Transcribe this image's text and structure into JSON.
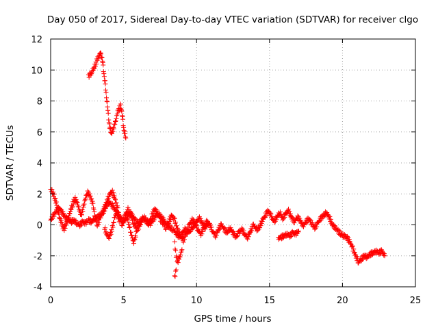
{
  "chart_data": {
    "type": "scatter",
    "title": "Day 050 of 2017, Sidereal Day-to-day VTEC variation (SDTVAR) for receiver clgo",
    "xlabel": "GPS time / hours",
    "ylabel": "SDTVAR / TECUs",
    "xlim": [
      0,
      25
    ],
    "ylim": [
      -4,
      12
    ],
    "xticks": [
      0,
      5,
      10,
      15,
      20,
      25
    ],
    "yticks": [
      -4,
      -2,
      0,
      2,
      4,
      6,
      8,
      10,
      12
    ],
    "grid": true,
    "marker": "+",
    "series": [
      {
        "name": "SDTVAR",
        "color": "#ff0000",
        "tracks": [
          [
            [
              0.0,
              2.3
            ],
            [
              0.15,
              2.1
            ],
            [
              0.3,
              1.7
            ],
            [
              0.45,
              1.2
            ],
            [
              0.6,
              0.5
            ],
            [
              0.75,
              0.1
            ],
            [
              0.9,
              -0.3
            ],
            [
              1.05,
              0.0
            ],
            [
              1.2,
              0.4
            ],
            [
              1.35,
              0.9
            ],
            [
              1.5,
              1.3
            ],
            [
              1.65,
              1.7
            ],
            [
              1.8,
              1.5
            ],
            [
              1.95,
              1.0
            ],
            [
              2.1,
              0.6
            ],
            [
              2.3,
              1.4
            ],
            [
              2.5,
              2.1
            ],
            [
              2.7,
              1.9
            ],
            [
              2.9,
              1.3
            ],
            [
              3.05,
              0.5
            ],
            [
              3.2,
              0.0
            ],
            [
              3.4,
              0.4
            ],
            [
              3.6,
              0.9
            ],
            [
              3.8,
              1.4
            ],
            [
              4.0,
              1.9
            ],
            [
              4.2,
              2.2
            ],
            [
              4.4,
              1.7
            ],
            [
              4.6,
              1.0
            ],
            [
              4.75,
              0.4
            ],
            [
              4.9,
              0.0
            ],
            [
              5.1,
              0.6
            ],
            [
              5.3,
              1.0
            ],
            [
              5.5,
              0.6
            ],
            [
              5.7,
              0.1
            ],
            [
              5.9,
              -0.3
            ],
            [
              6.1,
              -0.1
            ],
            [
              6.3,
              0.4
            ],
            [
              6.5,
              0.3
            ],
            [
              6.7,
              0.1
            ],
            [
              6.9,
              0.5
            ],
            [
              7.1,
              1.0
            ],
            [
              7.3,
              0.8
            ],
            [
              7.5,
              0.4
            ],
            [
              7.7,
              0.1
            ],
            [
              7.9,
              -0.2
            ],
            [
              8.1,
              0.2
            ],
            [
              8.3,
              0.6
            ],
            [
              8.5,
              0.3
            ],
            [
              8.7,
              -0.3
            ],
            [
              8.9,
              -0.7
            ],
            [
              9.1,
              -1.0
            ],
            [
              9.3,
              -0.5
            ],
            [
              9.5,
              0.0
            ],
            [
              9.7,
              0.3
            ],
            [
              9.9,
              0.1
            ],
            [
              10.1,
              -0.3
            ],
            [
              10.3,
              -0.6
            ],
            [
              10.5,
              -0.2
            ],
            [
              10.7,
              0.2
            ],
            [
              10.9,
              0.0
            ],
            [
              11.1,
              -0.4
            ],
            [
              11.3,
              -0.7
            ],
            [
              11.5,
              -0.3
            ],
            [
              11.7,
              0.0
            ],
            [
              11.9,
              -0.3
            ],
            [
              12.1,
              -0.5
            ],
            [
              12.3,
              -0.2
            ],
            [
              12.5,
              -0.5
            ],
            [
              12.7,
              -0.8
            ],
            [
              12.9,
              -0.5
            ],
            [
              13.1,
              -0.3
            ],
            [
              13.3,
              -0.6
            ],
            [
              13.5,
              -0.8
            ],
            [
              13.7,
              -0.4
            ],
            [
              13.9,
              0.0
            ],
            [
              14.1,
              -0.3
            ],
            [
              14.3,
              -0.2
            ],
            [
              14.5,
              0.3
            ],
            [
              14.7,
              0.6
            ],
            [
              14.9,
              0.9
            ],
            [
              15.1,
              0.6
            ],
            [
              15.3,
              0.2
            ],
            [
              15.5,
              0.5
            ],
            [
              15.7,
              0.8
            ],
            [
              15.9,
              0.4
            ],
            [
              16.1,
              0.7
            ],
            [
              16.3,
              0.9
            ],
            [
              16.5,
              0.5
            ],
            [
              16.7,
              0.2
            ],
            [
              16.9,
              0.5
            ],
            [
              17.1,
              0.3
            ],
            [
              17.3,
              -0.1
            ],
            [
              17.5,
              0.2
            ],
            [
              17.7,
              0.4
            ],
            [
              17.9,
              0.1
            ],
            [
              18.1,
              -0.2
            ],
            [
              18.3,
              0.1
            ],
            [
              18.5,
              0.4
            ],
            [
              18.7,
              0.6
            ],
            [
              18.9,
              0.8
            ],
            [
              19.1,
              0.5
            ],
            [
              19.3,
              0.0
            ],
            [
              19.5,
              -0.2
            ],
            [
              19.7,
              -0.4
            ],
            [
              19.9,
              -0.6
            ],
            [
              20.1,
              -0.7
            ],
            [
              20.3,
              -0.8
            ],
            [
              20.5,
              -1.1
            ],
            [
              20.7,
              -1.5
            ],
            [
              20.9,
              -2.0
            ],
            [
              21.1,
              -2.4
            ],
            [
              21.3,
              -2.2
            ],
            [
              21.5,
              -2.0
            ],
            [
              21.7,
              -2.1
            ],
            [
              21.9,
              -1.9
            ],
            [
              22.1,
              -1.8
            ],
            [
              22.3,
              -1.7
            ],
            [
              22.5,
              -1.8
            ],
            [
              22.7,
              -1.7
            ],
            [
              22.9,
              -2.0
            ]
          ],
          [
            [
              0.0,
              0.3
            ],
            [
              0.2,
              0.6
            ],
            [
              0.4,
              0.9
            ],
            [
              0.6,
              1.1
            ],
            [
              0.8,
              0.8
            ],
            [
              1.0,
              0.5
            ],
            [
              1.2,
              0.3
            ],
            [
              1.4,
              0.2
            ],
            [
              1.6,
              0.3
            ],
            [
              1.8,
              0.1
            ],
            [
              2.0,
              0.0
            ],
            [
              2.2,
              0.2
            ],
            [
              2.4,
              0.1
            ],
            [
              2.6,
              0.3
            ],
            [
              2.8,
              0.2
            ],
            [
              3.0,
              0.4
            ],
            [
              3.2,
              0.5
            ],
            [
              3.4,
              0.6
            ],
            [
              3.6,
              0.8
            ],
            [
              3.8,
              1.2
            ],
            [
              4.0,
              1.5
            ],
            [
              4.2,
              1.3
            ],
            [
              4.4,
              1.0
            ],
            [
              4.6,
              0.7
            ],
            [
              4.8,
              0.4
            ],
            [
              5.0,
              0.2
            ],
            [
              5.2,
              0.5
            ],
            [
              5.4,
              0.8
            ],
            [
              5.6,
              0.6
            ],
            [
              5.8,
              0.3
            ],
            [
              6.0,
              0.1
            ],
            [
              6.2,
              0.3
            ],
            [
              6.4,
              0.5
            ],
            [
              6.6,
              0.2
            ],
            [
              6.8,
              0.0
            ],
            [
              7.0,
              0.3
            ],
            [
              7.2,
              0.6
            ],
            [
              7.4,
              0.7
            ],
            [
              7.6,
              0.5
            ],
            [
              7.8,
              0.2
            ],
            [
              8.0,
              0.0
            ],
            [
              8.2,
              -0.2
            ],
            [
              8.4,
              -0.3
            ],
            [
              8.6,
              -0.5
            ],
            [
              8.8,
              -0.8
            ],
            [
              9.0,
              -0.6
            ],
            [
              9.2,
              -0.3
            ],
            [
              9.4,
              -0.5
            ],
            [
              9.6,
              -0.3
            ],
            [
              9.8,
              -0.1
            ],
            [
              10.0,
              0.2
            ],
            [
              10.2,
              0.4
            ],
            [
              10.4,
              0.1
            ],
            [
              10.6,
              -0.2
            ],
            [
              10.8,
              0.1
            ]
          ],
          [
            [
              3.7,
              -0.2
            ],
            [
              3.8,
              -0.5
            ],
            [
              3.9,
              -0.7
            ],
            [
              4.0,
              -0.8
            ],
            [
              4.1,
              -0.6
            ],
            [
              4.2,
              -0.3
            ],
            [
              4.3,
              0.1
            ],
            [
              4.4,
              0.5
            ],
            [
              4.5,
              0.8
            ],
            [
              4.6,
              0.6
            ],
            [
              4.7,
              0.2
            ]
          ],
          [
            [
              5.2,
              0.7
            ],
            [
              5.3,
              0.3
            ],
            [
              5.4,
              -0.1
            ],
            [
              5.5,
              -0.5
            ],
            [
              5.6,
              -0.9
            ],
            [
              5.7,
              -1.1
            ],
            [
              5.8,
              -0.8
            ],
            [
              5.9,
              -0.4
            ]
          ],
          [
            [
              8.5,
              -1.2
            ],
            [
              8.6,
              -2.0
            ],
            [
              8.7,
              -2.4
            ],
            [
              8.8,
              -2.2
            ],
            [
              8.9,
              -1.9
            ],
            [
              9.0,
              -1.6
            ]
          ],
          [
            [
              8.5,
              -3.4
            ],
            [
              8.6,
              -2.9
            ]
          ],
          [
            [
              15.6,
              -0.9
            ],
            [
              15.8,
              -0.8
            ],
            [
              16.0,
              -0.7
            ],
            [
              16.2,
              -0.6
            ],
            [
              16.4,
              -0.7
            ],
            [
              16.6,
              -0.5
            ],
            [
              16.8,
              -0.6
            ],
            [
              17.0,
              -0.4
            ]
          ],
          [
            [
              2.6,
              9.6
            ],
            [
              2.7,
              9.7
            ],
            [
              2.8,
              9.8
            ],
            [
              2.9,
              10.0
            ],
            [
              3.0,
              10.2
            ],
            [
              3.1,
              10.4
            ],
            [
              3.2,
              10.7
            ],
            [
              3.3,
              10.9
            ],
            [
              3.4,
              11.05
            ],
            [
              3.45,
              11.0
            ],
            [
              3.5,
              10.9
            ],
            [
              3.55,
              10.6
            ],
            [
              3.6,
              10.2
            ],
            [
              3.65,
              9.8
            ],
            [
              3.7,
              9.4
            ],
            [
              3.75,
              9.0
            ],
            [
              3.8,
              8.5
            ],
            [
              3.85,
              8.1
            ],
            [
              3.9,
              7.6
            ],
            [
              3.95,
              7.1
            ],
            [
              4.0,
              6.7
            ],
            [
              4.05,
              6.3
            ],
            [
              4.1,
              6.1
            ],
            [
              4.15,
              6.0
            ],
            [
              4.2,
              6.0
            ],
            [
              4.3,
              6.2
            ],
            [
              4.4,
              6.5
            ],
            [
              4.5,
              6.9
            ],
            [
              4.6,
              7.3
            ],
            [
              4.7,
              7.5
            ],
            [
              4.8,
              7.7
            ],
            [
              4.85,
              7.5
            ],
            [
              4.9,
              7.1
            ],
            [
              4.95,
              6.7
            ],
            [
              5.0,
              6.3
            ],
            [
              5.05,
              6.0
            ],
            [
              5.1,
              5.8
            ],
            [
              5.15,
              5.6
            ]
          ]
        ]
      }
    ]
  }
}
